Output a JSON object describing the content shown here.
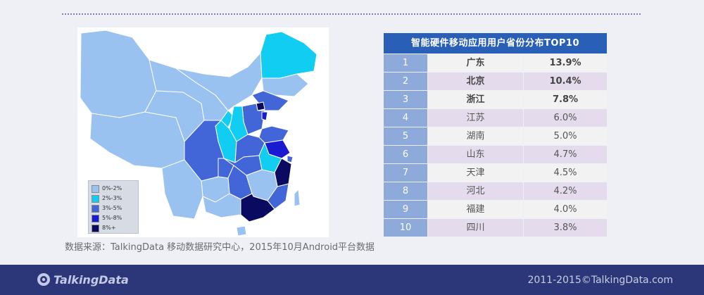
{
  "chart_data": [
    {
      "type": "table",
      "title": "智能硬件移动应用用户省份分布TOP10",
      "rows": [
        {
          "rank": "1",
          "province": "广东",
          "value": "13.9%"
        },
        {
          "rank": "2",
          "province": "北京",
          "value": "10.4%"
        },
        {
          "rank": "3",
          "province": "浙江",
          "value": "7.8%"
        },
        {
          "rank": "4",
          "province": "江苏",
          "value": "6.0%"
        },
        {
          "rank": "5",
          "province": "湖南",
          "value": "5.0%"
        },
        {
          "rank": "6",
          "province": "山东",
          "value": "4.7%"
        },
        {
          "rank": "7",
          "province": "天津",
          "value": "4.5%"
        },
        {
          "rank": "8",
          "province": "河北",
          "value": "4.2%"
        },
        {
          "rank": "9",
          "province": "福建",
          "value": "4.0%"
        },
        {
          "rank": "10",
          "province": "四川",
          "value": "3.8%"
        }
      ]
    },
    {
      "type": "heatmap",
      "legend": [
        {
          "label": "0%-2%",
          "color": "#99c2f0"
        },
        {
          "label": "2%-3%",
          "color": "#12cdf2"
        },
        {
          "label": "3%-5%",
          "color": "#4266d8"
        },
        {
          "label": "5%-8%",
          "color": "#1a1ad0"
        },
        {
          "label": "8%+",
          "color": "#0a0a60"
        }
      ]
    }
  ],
  "source_note": "数据来源：TalkingData 移动数据研究中心，2015年10月Android平台数据",
  "footer": {
    "logo_text": "TalkingData",
    "copyright": "2011-2015©TalkingData.com"
  },
  "colors": {
    "footer_bg": "#2b3779",
    "table_header": "#2a5fb8",
    "rank_cell": "#8eaadb"
  }
}
